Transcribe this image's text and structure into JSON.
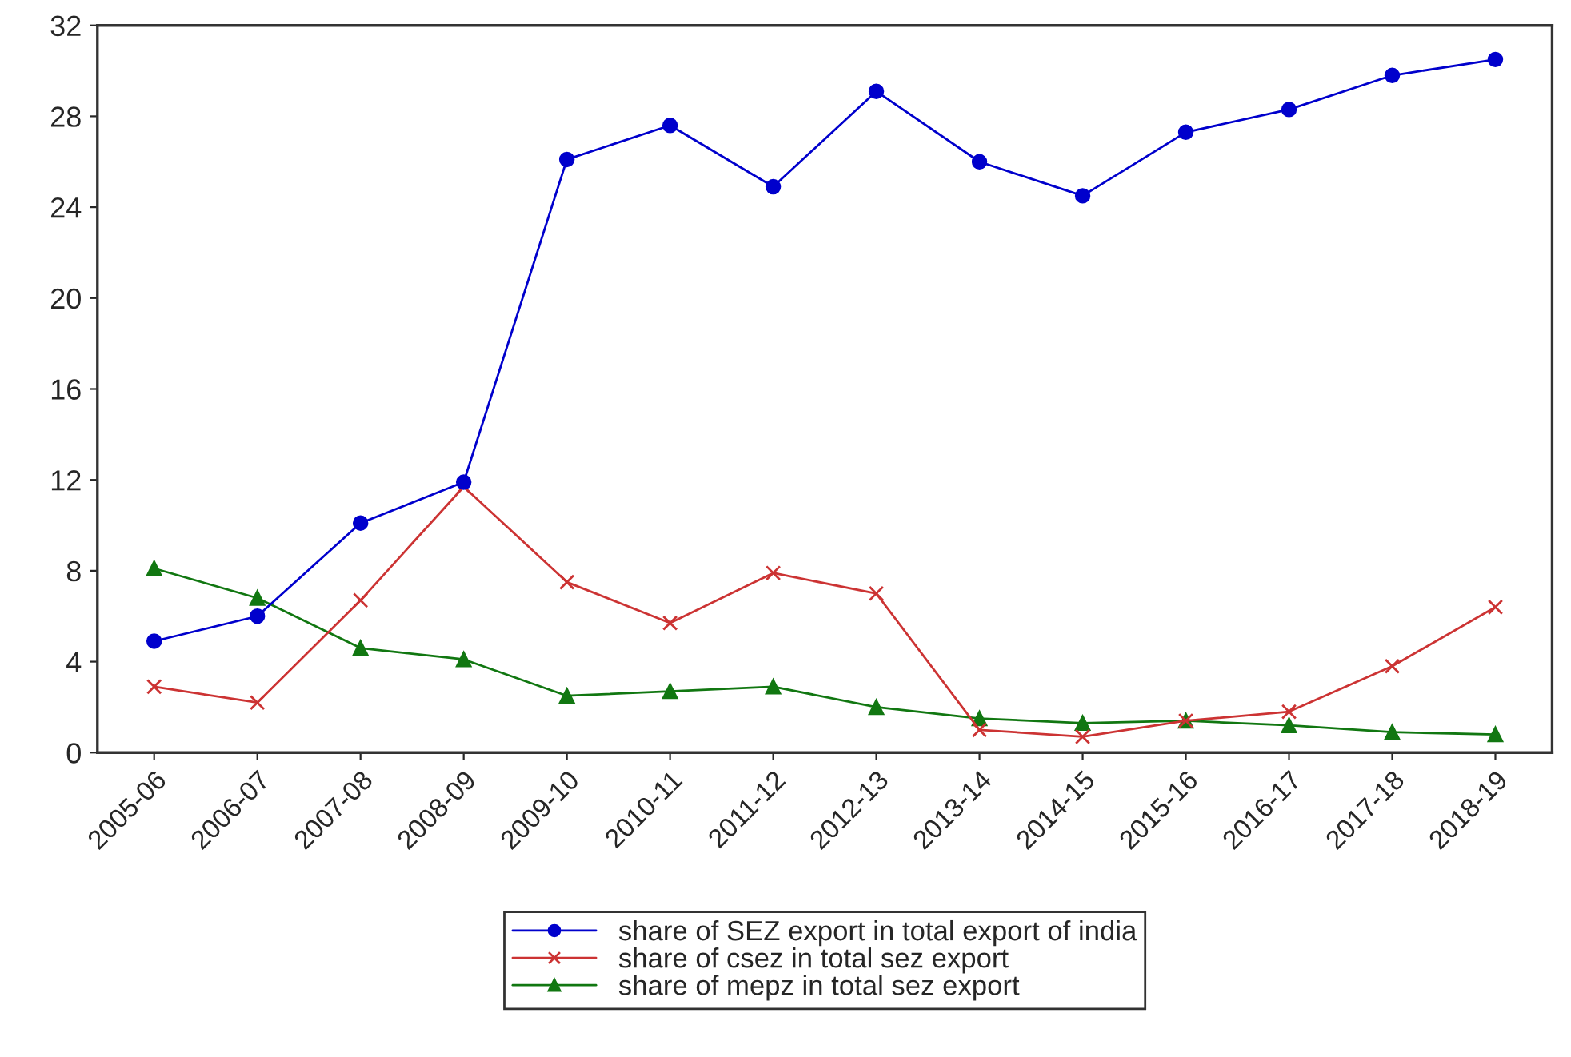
{
  "chart_data": {
    "type": "line",
    "categories": [
      "2005-06",
      "2006-07",
      "2007-08",
      "2008-09",
      "2009-10",
      "2010-11",
      "2011-12",
      "2012-13",
      "2013-14",
      "2014-15",
      "2015-16",
      "2016-17",
      "2017-18",
      "2018-19"
    ],
    "series": [
      {
        "name": "share of SEZ export in total export of india",
        "color": "#0000cc",
        "marker": "circle",
        "values": [
          4.9,
          6.0,
          10.1,
          11.9,
          26.1,
          27.6,
          24.9,
          29.1,
          26.0,
          24.5,
          27.3,
          28.3,
          29.8,
          30.5
        ]
      },
      {
        "name": "share of csez in total sez export",
        "color": "#cc3333",
        "marker": "cross",
        "values": [
          2.9,
          2.2,
          6.7,
          11.7,
          7.5,
          5.7,
          7.9,
          7.0,
          1.0,
          0.7,
          1.4,
          1.8,
          3.8,
          6.4
        ]
      },
      {
        "name": "share of mepz in total sez export",
        "color": "#117711",
        "marker": "triangle",
        "values": [
          8.1,
          6.8,
          4.6,
          4.1,
          2.5,
          2.7,
          2.9,
          2.0,
          1.5,
          1.3,
          1.4,
          1.2,
          0.9,
          0.8
        ]
      }
    ],
    "ylim": [
      0,
      32
    ],
    "yticks": [
      0,
      4,
      8,
      12,
      16,
      20,
      24,
      28,
      32
    ],
    "grid": false,
    "legend": "bottom",
    "line_style": "solid"
  }
}
